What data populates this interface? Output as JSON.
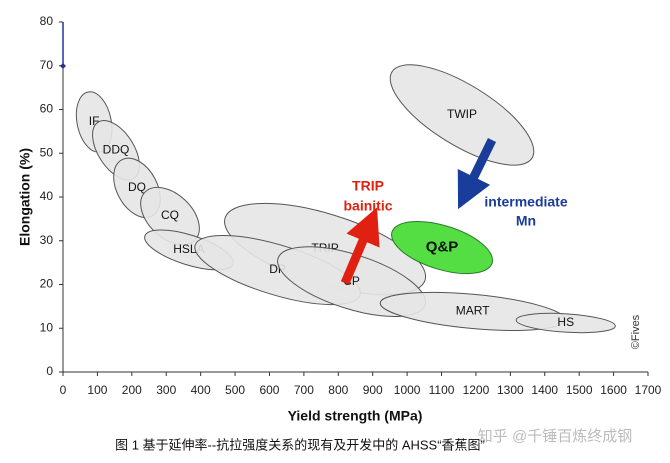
{
  "chart_data": {
    "type": "ellipse-regions",
    "x_label": "Yield strength (MPa)",
    "y_label": "Elongation (%)",
    "xlim": [
      0,
      1700
    ],
    "ylim": [
      0,
      80
    ],
    "xticks": [
      0,
      100,
      200,
      300,
      400,
      500,
      600,
      700,
      800,
      900,
      1000,
      1100,
      1200,
      1300,
      1400,
      1500,
      1600,
      1700
    ],
    "yticks": [
      0,
      10,
      20,
      30,
      40,
      50,
      60,
      70,
      80
    ],
    "regions": [
      {
        "name": "IF",
        "x": [
          73,
          108
        ],
        "y": [
          64,
          50.3
        ],
        "half_width": 3.9,
        "color": "#e6e6e6"
      },
      {
        "name": "DDQ",
        "x": [
          102,
          206
        ],
        "y": [
          57.1,
          44.3
        ],
        "half_width": 4.1,
        "color": "#e6e6e6"
      },
      {
        "name": "DQ",
        "x": [
          171,
          259
        ],
        "y": [
          48.5,
          35.7
        ],
        "half_width": 4.6,
        "color": "#e6e6e6"
      },
      {
        "name": "CQ",
        "x": [
          238,
          384
        ],
        "y": [
          41.1,
          30.2
        ],
        "half_width": 5,
        "color": "#e6e6e6"
      },
      {
        "name": "TRIP",
        "x": [
          471,
          1052
        ],
        "y": [
          35.2,
          21
        ],
        "half_width": 8,
        "color": "#e6e6e6"
      },
      {
        "name": "HSLA",
        "x": [
          238,
          494
        ],
        "y": [
          31.1,
          24.7
        ],
        "half_width": 3.4,
        "color": "#e6e6e6"
      },
      {
        "name": "DP",
        "x": [
          384,
          863
        ],
        "y": [
          29,
          17.6
        ],
        "half_width": 5.7,
        "color": "#e6e6e6"
      },
      {
        "name": "CP",
        "x": [
          625,
          1052
        ],
        "y": [
          26,
          15.3
        ],
        "half_width": 6.2,
        "color": "#e6e6e6"
      },
      {
        "name": "MART",
        "x": [
          922,
          1459
        ],
        "y": [
          15.8,
          11.9
        ],
        "half_width": 3.9,
        "color": "#e6e6e6"
      },
      {
        "name": "HS",
        "x": [
          1317,
          1605
        ],
        "y": [
          11.9,
          10.5
        ],
        "half_width": 2.1,
        "color": "#e6e6e6"
      },
      {
        "name": "TWIP",
        "x": [
          956,
          1363
        ],
        "y": [
          68.6,
          48.9
        ],
        "half_width": 6.9,
        "color": "#e6e6e6"
      },
      {
        "name": "Q&P",
        "x": [
          956,
          1247
        ],
        "y": [
          32,
          24.9
        ],
        "half_width": 5,
        "color": "#55dd44"
      }
    ],
    "annotations": [
      "TRIP",
      "bainitic",
      "intermediate",
      "Mn"
    ],
    "credit": "©Fives",
    "caption": "图 1 基于延伸率--抗拉强度关系的现有及开发中的 AHSS“香蕉图”",
    "watermark": "知乎 @千锤百炼终成钢"
  }
}
